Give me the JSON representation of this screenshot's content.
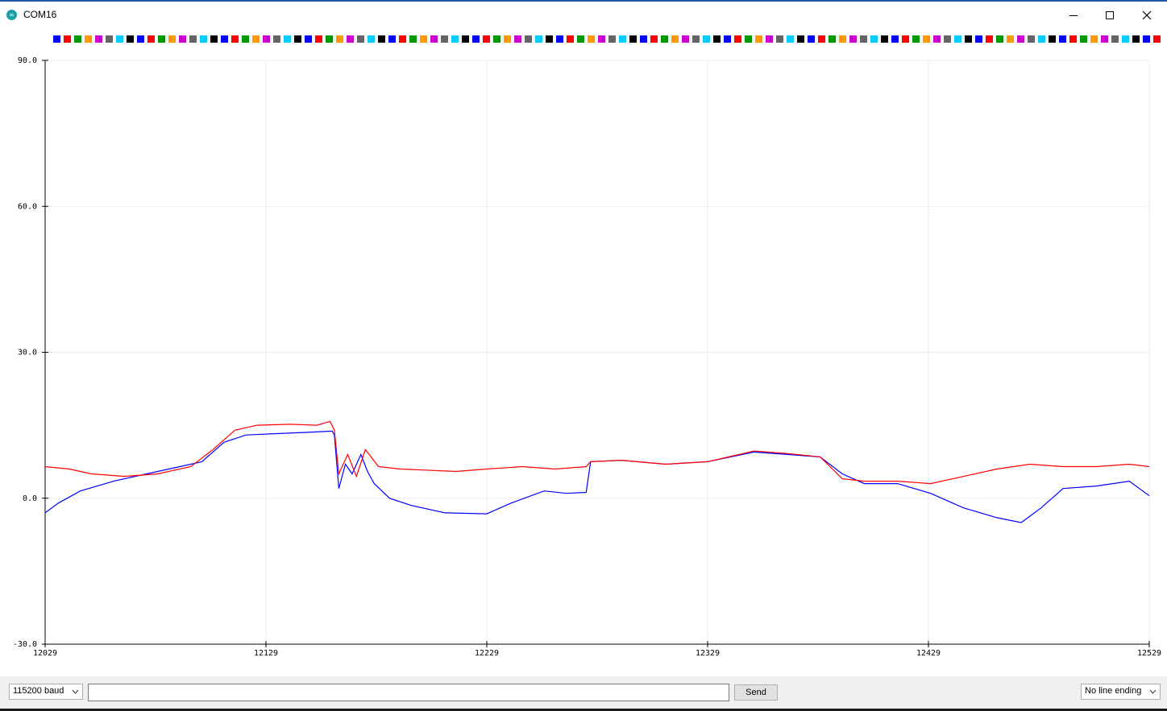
{
  "window": {
    "title": "COM16",
    "icon": "arduino-infinity-icon"
  },
  "legend": {
    "swatch_colors": [
      "#0000ff",
      "#ff0000",
      "#009900",
      "#ff9900",
      "#cc00cc",
      "#666666",
      "#00ccff",
      "#000000"
    ],
    "swatch_count": 106
  },
  "chart_data": {
    "type": "line",
    "title": "",
    "xlabel": "",
    "ylabel": "",
    "xlim": [
      12029,
      12529
    ],
    "ylim": [
      -30,
      90
    ],
    "yticks": [
      "90.0",
      "60.0",
      "30.0",
      "0.0",
      "-30.0"
    ],
    "ytick_values": [
      90,
      60,
      30,
      0,
      -30
    ],
    "xticks": [
      "12029",
      "12129",
      "12229",
      "12329",
      "12429",
      "12529"
    ],
    "xtick_values": [
      12029,
      12129,
      12229,
      12329,
      12429,
      12529
    ],
    "grid": true,
    "series": [
      {
        "color": "#0000ff",
        "points": [
          [
            12029,
            -3
          ],
          [
            12035,
            -1
          ],
          [
            12045,
            1.5
          ],
          [
            12060,
            3.5
          ],
          [
            12075,
            5
          ],
          [
            12090,
            6.5
          ],
          [
            12100,
            7.5
          ],
          [
            12110,
            11.5
          ],
          [
            12120,
            13
          ],
          [
            12135,
            13.3
          ],
          [
            12150,
            13.6
          ],
          [
            12159,
            13.8
          ],
          [
            12160,
            13
          ],
          [
            12162,
            2
          ],
          [
            12165,
            7
          ],
          [
            12168,
            5
          ],
          [
            12172,
            9
          ],
          [
            12175,
            5.5
          ],
          [
            12178,
            3
          ],
          [
            12185,
            0
          ],
          [
            12195,
            -1.5
          ],
          [
            12210,
            -3
          ],
          [
            12229,
            -3.2
          ],
          [
            12240,
            -1
          ],
          [
            12255,
            1.5
          ],
          [
            12265,
            1
          ],
          [
            12274,
            1.2
          ],
          [
            12276,
            7.5
          ],
          [
            12290,
            7.8
          ],
          [
            12310,
            7
          ],
          [
            12329,
            7.5
          ],
          [
            12350,
            9.5
          ],
          [
            12365,
            9
          ],
          [
            12380,
            8.5
          ],
          [
            12390,
            5
          ],
          [
            12400,
            3
          ],
          [
            12415,
            3
          ],
          [
            12430,
            1
          ],
          [
            12445,
            -2
          ],
          [
            12460,
            -4
          ],
          [
            12471,
            -5
          ],
          [
            12480,
            -2
          ],
          [
            12490,
            2
          ],
          [
            12505,
            2.5
          ],
          [
            12520,
            3.5
          ],
          [
            12529,
            0.5
          ]
        ]
      },
      {
        "color": "#ff0000",
        "points": [
          [
            12029,
            6.5
          ],
          [
            12040,
            6
          ],
          [
            12050,
            5
          ],
          [
            12065,
            4.5
          ],
          [
            12080,
            5
          ],
          [
            12095,
            6.5
          ],
          [
            12105,
            10
          ],
          [
            12115,
            14
          ],
          [
            12125,
            15
          ],
          [
            12140,
            15.2
          ],
          [
            12152,
            15
          ],
          [
            12158,
            15.8
          ],
          [
            12160,
            14
          ],
          [
            12162,
            5
          ],
          [
            12166,
            9
          ],
          [
            12170,
            4.5
          ],
          [
            12174,
            10
          ],
          [
            12180,
            6.5
          ],
          [
            12190,
            6
          ],
          [
            12200,
            5.8
          ],
          [
            12215,
            5.5
          ],
          [
            12229,
            6
          ],
          [
            12245,
            6.5
          ],
          [
            12260,
            6
          ],
          [
            12274,
            6.5
          ],
          [
            12276,
            7.5
          ],
          [
            12290,
            7.8
          ],
          [
            12310,
            7
          ],
          [
            12329,
            7.5
          ],
          [
            12350,
            9.7
          ],
          [
            12365,
            9.2
          ],
          [
            12380,
            8.5
          ],
          [
            12390,
            4
          ],
          [
            12400,
            3.5
          ],
          [
            12415,
            3.5
          ],
          [
            12430,
            3
          ],
          [
            12445,
            4.5
          ],
          [
            12460,
            6
          ],
          [
            12475,
            7
          ],
          [
            12490,
            6.5
          ],
          [
            12505,
            6.5
          ],
          [
            12520,
            7
          ],
          [
            12529,
            6.5
          ]
        ]
      }
    ]
  },
  "footer": {
    "baud": "115200 baud",
    "input_value": "",
    "send_label": "Send",
    "line_ending": "No line ending"
  }
}
